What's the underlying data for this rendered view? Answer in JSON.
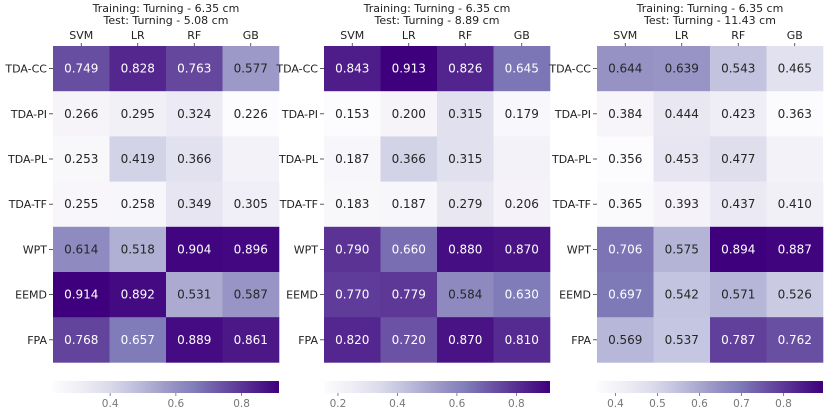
{
  "chart_data": [
    {
      "type": "heatmap",
      "title_line1": "Training: Turning - 6.35 cm",
      "title_line2": "Test: Turning - 5.08 cm",
      "columns": [
        "SVM",
        "LR",
        "RF",
        "GB"
      ],
      "rows": [
        "TDA-CC",
        "TDA-PI",
        "TDA-PL",
        "TDA-TF",
        "WPT",
        "EEMD",
        "FPA"
      ],
      "values": [
        [
          0.749,
          0.828,
          0.763,
          0.577
        ],
        [
          0.266,
          0.295,
          0.324,
          0.226
        ],
        [
          0.253,
          0.419,
          0.366,
          null
        ],
        [
          0.255,
          0.258,
          0.349,
          0.305
        ],
        [
          0.614,
          0.518,
          0.904,
          0.896
        ],
        [
          0.914,
          0.892,
          0.531,
          0.587
        ],
        [
          0.768,
          0.657,
          0.889,
          0.861
        ]
      ],
      "colorbar": {
        "min": 0.226,
        "max": 0.914,
        "ticks": [
          "0.4",
          "0.6",
          "0.8"
        ],
        "tick_values": [
          0.4,
          0.6,
          0.8
        ]
      }
    },
    {
      "type": "heatmap",
      "title_line1": "Training: Turning - 6.35 cm",
      "title_line2": "Test: Turning - 8.89 cm",
      "columns": [
        "SVM",
        "LR",
        "RF",
        "GB"
      ],
      "rows": [
        "TDA-CC",
        "TDA-PI",
        "TDA-PL",
        "TDA-TF",
        "WPT",
        "EEMD",
        "FPA"
      ],
      "values": [
        [
          0.843,
          0.913,
          0.826,
          0.645
        ],
        [
          0.153,
          0.2,
          0.315,
          0.179
        ],
        [
          0.187,
          0.366,
          0.315,
          null
        ],
        [
          0.183,
          0.187,
          0.279,
          0.206
        ],
        [
          0.79,
          0.66,
          0.88,
          0.87
        ],
        [
          0.77,
          0.779,
          0.584,
          0.63
        ],
        [
          0.82,
          0.72,
          0.87,
          0.81
        ]
      ],
      "colorbar": {
        "min": 0.153,
        "max": 0.913,
        "ticks": [
          "0.2",
          "0.4",
          "0.6",
          "0.8"
        ],
        "tick_values": [
          0.2,
          0.4,
          0.6,
          0.8
        ]
      }
    },
    {
      "type": "heatmap",
      "title_line1": "Training: Turning - 6.35 cm",
      "title_line2": "Test: Turning - 11.43 cm",
      "columns": [
        "SVM",
        "LR",
        "RF",
        "GB"
      ],
      "rows": [
        "TDA-CC",
        "TDA-PI",
        "TDA-PL",
        "TDA-TF",
        "WPT",
        "EEMD",
        "FPA"
      ],
      "values": [
        [
          0.644,
          0.639,
          0.543,
          0.465
        ],
        [
          0.384,
          0.444,
          0.423,
          0.363
        ],
        [
          0.356,
          0.453,
          0.477,
          null
        ],
        [
          0.365,
          0.393,
          0.437,
          0.41
        ],
        [
          0.706,
          0.575,
          0.894,
          0.887
        ],
        [
          0.697,
          0.542,
          0.571,
          0.526
        ],
        [
          0.569,
          0.537,
          0.787,
          0.762
        ]
      ],
      "colorbar": {
        "min": 0.356,
        "max": 0.894,
        "ticks": [
          "0.4",
          "0.5",
          "0.6",
          "0.7",
          "0.8"
        ],
        "tick_values": [
          0.4,
          0.5,
          0.6,
          0.7,
          0.8
        ]
      }
    }
  ],
  "colors": {
    "colormap": [
      "#fcfbfd",
      "#efedf5",
      "#dadaeb",
      "#bcbddc",
      "#9e9ac8",
      "#807dba",
      "#6a51a3",
      "#54278f",
      "#3f007d"
    ],
    "missing_cell": "#f3f2f8",
    "text_dark": "#262626",
    "text_light": "#ffffff"
  }
}
